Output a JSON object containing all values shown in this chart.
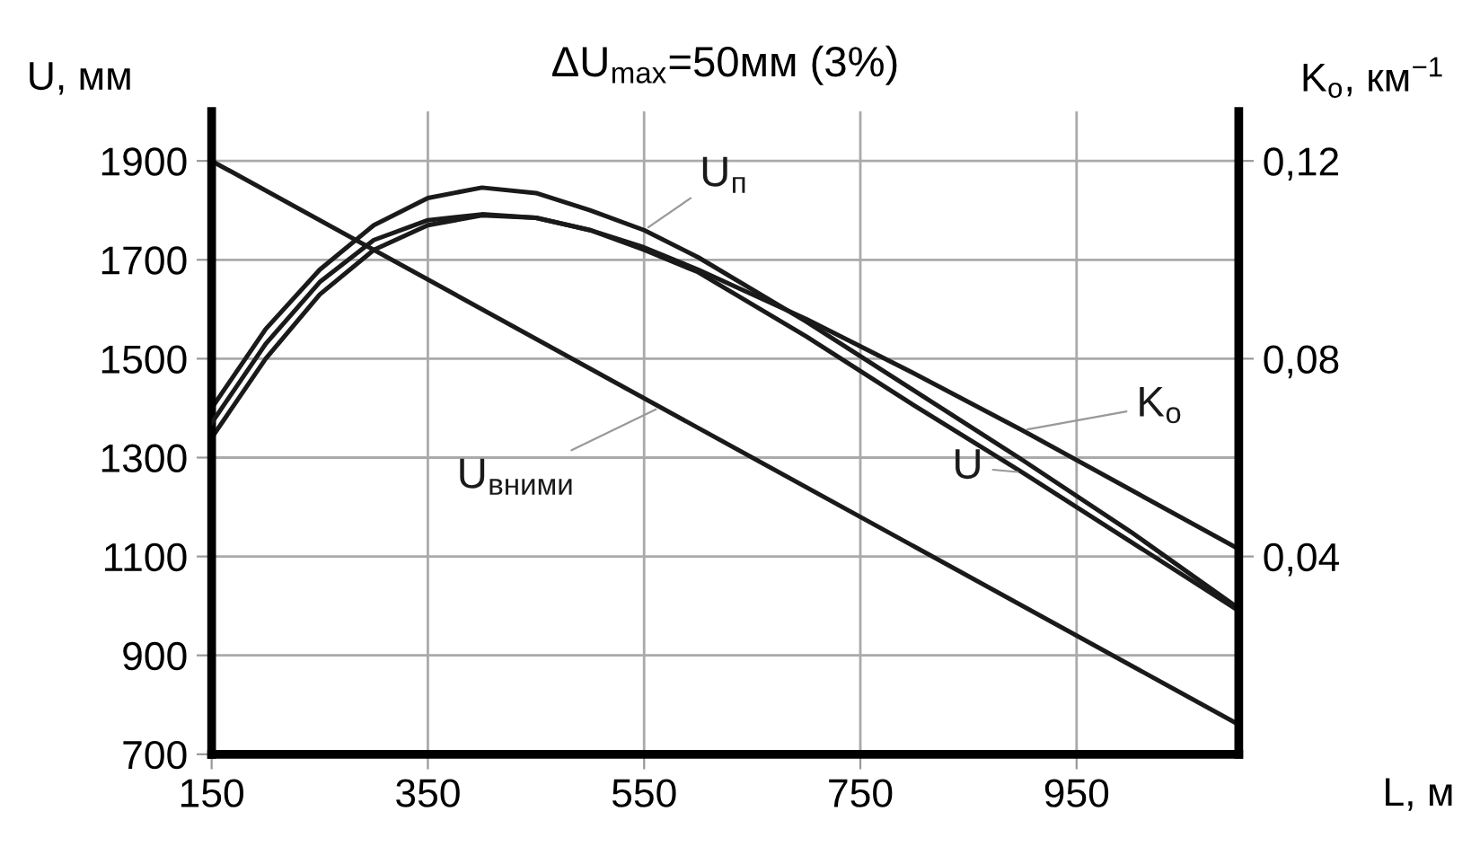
{
  "chart_data": {
    "type": "line",
    "title": "ΔU$_{max}$=50мм (3%)",
    "xlabel": "L, м",
    "ylabel": "U, мм",
    "y2label": "K$_{о}$, км$^{−1}$",
    "x": [
      150,
      200,
      250,
      300,
      350,
      400,
      450,
      500,
      550,
      600,
      700,
      800,
      900,
      1000,
      1100
    ],
    "series": [
      {
        "name": "U$_{п}$",
        "color": "#1a1a1a",
        "values": [
          1400,
          1560,
          1680,
          1770,
          1825,
          1846,
          1835,
          1800,
          1760,
          1705,
          1575,
          1435,
          1295,
          1150,
          995
        ]
      },
      {
        "name": "U",
        "color": "#1a1a1a",
        "values": [
          1340,
          1500,
          1630,
          1720,
          1770,
          1790,
          1785,
          1760,
          1720,
          1675,
          1545,
          1405,
          1270,
          1130,
          990
        ]
      },
      {
        "name": "K$_{о}$",
        "color": "#1a1a1a",
        "axis": "y2",
        "values": [
          0.067,
          0.083,
          0.0955,
          0.104,
          0.108,
          0.1092,
          0.1085,
          0.106,
          0.1025,
          0.098,
          0.088,
          0.077,
          0.0655,
          0.0535,
          0.0415
        ]
      },
      {
        "name": "U$_{вними}$",
        "color": "#1a1a1a",
        "x": [
          150,
          1100
        ],
        "values": [
          1900,
          760
        ]
      }
    ],
    "xlim": [
      150,
      1100
    ],
    "xticks": [
      150,
      350,
      550,
      750,
      950
    ],
    "ylim": [
      700,
      2000
    ],
    "yticks": [
      700,
      900,
      1100,
      1300,
      1500,
      1700,
      1900
    ],
    "y2lim": [
      0,
      0.13
    ],
    "y2ticks": [
      {
        "value": 0.04,
        "label": "0,04"
      },
      {
        "value": 0.08,
        "label": "0,08"
      },
      {
        "value": 0.12,
        "label": "0,12"
      }
    ],
    "grid": true,
    "legend": false,
    "marker": "none",
    "line_style": "solid"
  }
}
